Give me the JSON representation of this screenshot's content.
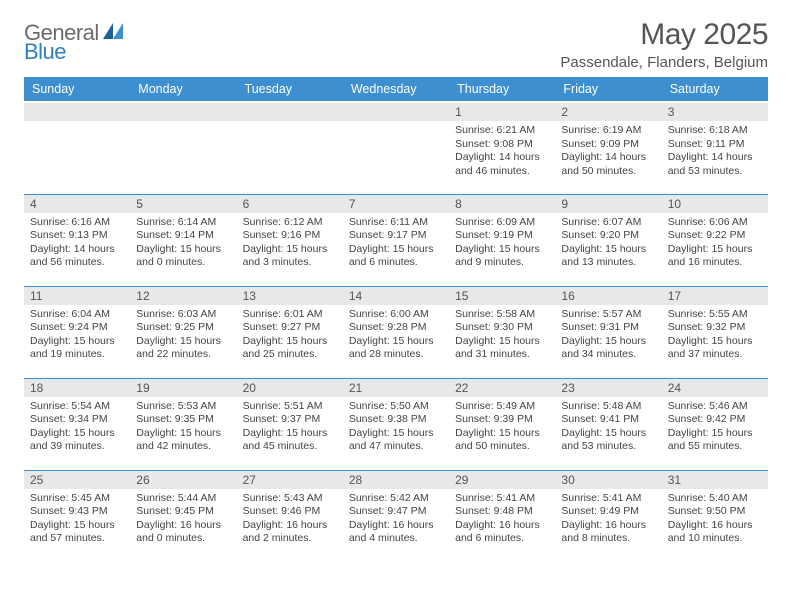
{
  "logo": {
    "text_general": "General",
    "text_blue": "Blue"
  },
  "title": "May 2025",
  "location": "Passendale, Flanders, Belgium",
  "colors": {
    "header_bg": "#3d8fcf",
    "header_text": "#ffffff",
    "daynum_bg": "#e8e8e8",
    "text": "#555555",
    "rule": "#3d8fcf"
  },
  "typography": {
    "title_fontsize": 30,
    "location_fontsize": 15,
    "weekday_fontsize": 12.5,
    "daynum_fontsize": 12,
    "body_fontsize": 10.5
  },
  "weekdays": [
    "Sunday",
    "Monday",
    "Tuesday",
    "Wednesday",
    "Thursday",
    "Friday",
    "Saturday"
  ],
  "weeks": [
    [
      null,
      null,
      null,
      null,
      {
        "n": "1",
        "sunrise": "6:21 AM",
        "sunset": "9:08 PM",
        "dh": "14",
        "dm": "46"
      },
      {
        "n": "2",
        "sunrise": "6:19 AM",
        "sunset": "9:09 PM",
        "dh": "14",
        "dm": "50"
      },
      {
        "n": "3",
        "sunrise": "6:18 AM",
        "sunset": "9:11 PM",
        "dh": "14",
        "dm": "53"
      }
    ],
    [
      {
        "n": "4",
        "sunrise": "6:16 AM",
        "sunset": "9:13 PM",
        "dh": "14",
        "dm": "56"
      },
      {
        "n": "5",
        "sunrise": "6:14 AM",
        "sunset": "9:14 PM",
        "dh": "15",
        "dm": "0"
      },
      {
        "n": "6",
        "sunrise": "6:12 AM",
        "sunset": "9:16 PM",
        "dh": "15",
        "dm": "3"
      },
      {
        "n": "7",
        "sunrise": "6:11 AM",
        "sunset": "9:17 PM",
        "dh": "15",
        "dm": "6"
      },
      {
        "n": "8",
        "sunrise": "6:09 AM",
        "sunset": "9:19 PM",
        "dh": "15",
        "dm": "9"
      },
      {
        "n": "9",
        "sunrise": "6:07 AM",
        "sunset": "9:20 PM",
        "dh": "15",
        "dm": "13"
      },
      {
        "n": "10",
        "sunrise": "6:06 AM",
        "sunset": "9:22 PM",
        "dh": "15",
        "dm": "16"
      }
    ],
    [
      {
        "n": "11",
        "sunrise": "6:04 AM",
        "sunset": "9:24 PM",
        "dh": "15",
        "dm": "19"
      },
      {
        "n": "12",
        "sunrise": "6:03 AM",
        "sunset": "9:25 PM",
        "dh": "15",
        "dm": "22"
      },
      {
        "n": "13",
        "sunrise": "6:01 AM",
        "sunset": "9:27 PM",
        "dh": "15",
        "dm": "25"
      },
      {
        "n": "14",
        "sunrise": "6:00 AM",
        "sunset": "9:28 PM",
        "dh": "15",
        "dm": "28"
      },
      {
        "n": "15",
        "sunrise": "5:58 AM",
        "sunset": "9:30 PM",
        "dh": "15",
        "dm": "31"
      },
      {
        "n": "16",
        "sunrise": "5:57 AM",
        "sunset": "9:31 PM",
        "dh": "15",
        "dm": "34"
      },
      {
        "n": "17",
        "sunrise": "5:55 AM",
        "sunset": "9:32 PM",
        "dh": "15",
        "dm": "37"
      }
    ],
    [
      {
        "n": "18",
        "sunrise": "5:54 AM",
        "sunset": "9:34 PM",
        "dh": "15",
        "dm": "39"
      },
      {
        "n": "19",
        "sunrise": "5:53 AM",
        "sunset": "9:35 PM",
        "dh": "15",
        "dm": "42"
      },
      {
        "n": "20",
        "sunrise": "5:51 AM",
        "sunset": "9:37 PM",
        "dh": "15",
        "dm": "45"
      },
      {
        "n": "21",
        "sunrise": "5:50 AM",
        "sunset": "9:38 PM",
        "dh": "15",
        "dm": "47"
      },
      {
        "n": "22",
        "sunrise": "5:49 AM",
        "sunset": "9:39 PM",
        "dh": "15",
        "dm": "50"
      },
      {
        "n": "23",
        "sunrise": "5:48 AM",
        "sunset": "9:41 PM",
        "dh": "15",
        "dm": "53"
      },
      {
        "n": "24",
        "sunrise": "5:46 AM",
        "sunset": "9:42 PM",
        "dh": "15",
        "dm": "55"
      }
    ],
    [
      {
        "n": "25",
        "sunrise": "5:45 AM",
        "sunset": "9:43 PM",
        "dh": "15",
        "dm": "57"
      },
      {
        "n": "26",
        "sunrise": "5:44 AM",
        "sunset": "9:45 PM",
        "dh": "16",
        "dm": "0"
      },
      {
        "n": "27",
        "sunrise": "5:43 AM",
        "sunset": "9:46 PM",
        "dh": "16",
        "dm": "2"
      },
      {
        "n": "28",
        "sunrise": "5:42 AM",
        "sunset": "9:47 PM",
        "dh": "16",
        "dm": "4"
      },
      {
        "n": "29",
        "sunrise": "5:41 AM",
        "sunset": "9:48 PM",
        "dh": "16",
        "dm": "6"
      },
      {
        "n": "30",
        "sunrise": "5:41 AM",
        "sunset": "9:49 PM",
        "dh": "16",
        "dm": "8"
      },
      {
        "n": "31",
        "sunrise": "5:40 AM",
        "sunset": "9:50 PM",
        "dh": "16",
        "dm": "10"
      }
    ]
  ],
  "labels": {
    "sunrise": "Sunrise: ",
    "sunset": "Sunset: ",
    "daylight_prefix": "Daylight: ",
    "hours_word": " hours",
    "and_word": "and ",
    "minutes_word": " minutes."
  }
}
